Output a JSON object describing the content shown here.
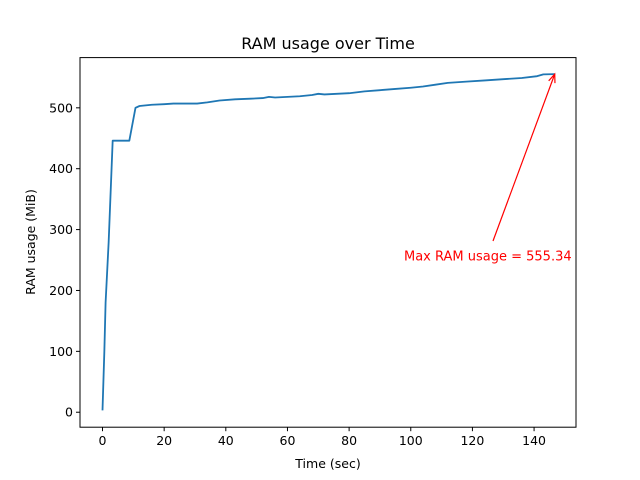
{
  "chart_data": {
    "type": "line",
    "title": "RAM usage over Time",
    "xlabel": "Time (sec)",
    "ylabel": "RAM usage (MiB)",
    "xlim": [
      -7.3,
      153.6
    ],
    "ylim": [
      -24.6,
      582.5
    ],
    "xticks": [
      0,
      20,
      40,
      60,
      80,
      100,
      120,
      140
    ],
    "yticks": [
      0,
      100,
      200,
      300,
      400,
      500
    ],
    "grid": false,
    "legend": "none",
    "series": [
      {
        "color": "#1f77b4",
        "points": [
          [
            0.0,
            3
          ],
          [
            0.6,
            100
          ],
          [
            1.0,
            180
          ],
          [
            2.0,
            280
          ],
          [
            3.3,
            446
          ],
          [
            5.0,
            446
          ],
          [
            8.7,
            446
          ],
          [
            10.7,
            500
          ],
          [
            12.0,
            503
          ],
          [
            16.0,
            505
          ],
          [
            20.0,
            506
          ],
          [
            23.0,
            507
          ],
          [
            27.0,
            507
          ],
          [
            30.7,
            507
          ],
          [
            34.0,
            509
          ],
          [
            38.0,
            512
          ],
          [
            43.0,
            514
          ],
          [
            48.0,
            515
          ],
          [
            52.0,
            516
          ],
          [
            54.0,
            518
          ],
          [
            56.0,
            517
          ],
          [
            60.0,
            518
          ],
          [
            64.0,
            519
          ],
          [
            68.0,
            521
          ],
          [
            70.0,
            523
          ],
          [
            72.0,
            522
          ],
          [
            76.0,
            523
          ],
          [
            80.0,
            524
          ],
          [
            85.0,
            527
          ],
          [
            90.0,
            529
          ],
          [
            95.0,
            531
          ],
          [
            100.0,
            533
          ],
          [
            104.0,
            535
          ],
          [
            108.0,
            538
          ],
          [
            112.0,
            541
          ],
          [
            118.0,
            543
          ],
          [
            124.0,
            545
          ],
          [
            130.0,
            547
          ],
          [
            136.0,
            549
          ],
          [
            141.0,
            552
          ],
          [
            143.0,
            555
          ],
          [
            146.7,
            555.34
          ]
        ]
      }
    ],
    "annotation": {
      "text": "Max RAM usage = 555.34",
      "xy": [
        146.7,
        555.34
      ],
      "xytext": [
        97.8,
        257
      ],
      "color": "#ff0000"
    }
  }
}
